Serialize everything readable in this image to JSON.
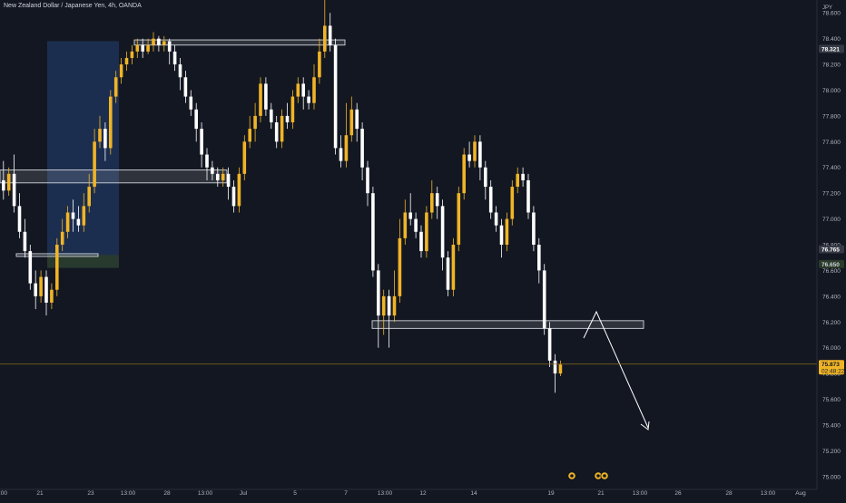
{
  "header": {
    "symbol_title": "New Zealand Dollar / Japanese Yen, 4h, OANDA"
  },
  "axis": {
    "currency": "JPY"
  },
  "chart_data": {
    "type": "candlestick",
    "title": "New Zealand Dollar / Japanese Yen, 4h, OANDA",
    "ylabel": "JPY",
    "ylim": [
      74.9,
      78.7
    ],
    "y_ticks": [
      "78.600",
      "78.400",
      "78.200",
      "78.000",
      "77.800",
      "77.600",
      "77.400",
      "77.200",
      "77.000",
      "76.800",
      "76.600",
      "76.400",
      "76.200",
      "76.000",
      "75.800",
      "75.600",
      "75.400",
      "75.200",
      "75.000"
    ],
    "x_ticks": [
      "21",
      "23",
      "13:00",
      "28",
      "13:00",
      "Jul",
      "5",
      "7",
      "13:00",
      "12",
      "14",
      "19",
      "21",
      "13:00",
      "26",
      "28",
      "13:00",
      "Aug"
    ],
    "x_ticks_partial": [
      ":00"
    ],
    "price_labels": [
      {
        "value": "78.321",
        "role": "high-marker"
      },
      {
        "value": "76.765",
        "role": "marker"
      },
      {
        "value": "76.650",
        "role": "marker"
      },
      {
        "value": "75.873",
        "role": "last-price"
      }
    ],
    "countdown": "02:48:22",
    "zones": [
      {
        "name": "upper-resistance-zone",
        "from": 78.35,
        "to": 78.39
      },
      {
        "name": "mid-resistance-zone",
        "from": 77.28,
        "to": 77.38
      },
      {
        "name": "lower-zone",
        "from": 76.71,
        "to": 76.73
      },
      {
        "name": "support-zone",
        "from": 76.15,
        "to": 76.21
      }
    ],
    "bullish_color": "#f0b427",
    "bearish_color": "#ffffff",
    "candles": [
      [
        77.3,
        77.22,
        77.45,
        77.15
      ],
      [
        77.22,
        77.35,
        77.4,
        77.18
      ],
      [
        77.35,
        77.1,
        77.5,
        77.05
      ],
      [
        77.1,
        76.9,
        77.2,
        76.85
      ],
      [
        76.9,
        76.75,
        77.0,
        76.7
      ],
      [
        76.75,
        76.5,
        76.8,
        76.45
      ],
      [
        76.5,
        76.4,
        76.6,
        76.3
      ],
      [
        76.4,
        76.55,
        76.6,
        76.35
      ],
      [
        76.55,
        76.35,
        76.6,
        76.25
      ],
      [
        76.35,
        76.45,
        76.5,
        76.3
      ],
      [
        76.45,
        76.8,
        76.85,
        76.4
      ],
      [
        76.8,
        76.9,
        77.0,
        76.75
      ],
      [
        76.9,
        77.05,
        77.1,
        76.85
      ],
      [
        77.05,
        77.0,
        77.15,
        76.9
      ],
      [
        77.0,
        76.95,
        77.1,
        76.9
      ],
      [
        76.95,
        77.1,
        77.2,
        76.9
      ],
      [
        77.1,
        77.25,
        77.35,
        77.05
      ],
      [
        77.25,
        77.6,
        77.7,
        77.2
      ],
      [
        77.6,
        77.7,
        77.8,
        77.55
      ],
      [
        77.7,
        77.55,
        77.75,
        77.45
      ],
      [
        77.55,
        77.95,
        78.0,
        77.5
      ],
      [
        77.95,
        78.1,
        78.15,
        77.9
      ],
      [
        78.1,
        78.2,
        78.25,
        78.05
      ],
      [
        78.2,
        78.25,
        78.3,
        78.15
      ],
      [
        78.25,
        78.3,
        78.35,
        78.2
      ],
      [
        78.3,
        78.35,
        78.4,
        78.25
      ],
      [
        78.35,
        78.3,
        78.4,
        78.25
      ],
      [
        78.3,
        78.35,
        78.4,
        78.28
      ],
      [
        78.35,
        78.4,
        78.45,
        78.3
      ],
      [
        78.4,
        78.35,
        78.42,
        78.3
      ],
      [
        78.35,
        78.38,
        78.42,
        78.3
      ],
      [
        78.38,
        78.3,
        78.4,
        78.2
      ],
      [
        78.3,
        78.2,
        78.35,
        78.15
      ],
      [
        78.2,
        78.1,
        78.25,
        78.0
      ],
      [
        78.1,
        77.95,
        78.15,
        77.9
      ],
      [
        77.95,
        77.85,
        78.0,
        77.8
      ],
      [
        77.85,
        77.7,
        77.9,
        77.6
      ],
      [
        77.7,
        77.5,
        77.75,
        77.4
      ],
      [
        77.5,
        77.4,
        77.55,
        77.3
      ],
      [
        77.4,
        77.35,
        77.45,
        77.3
      ],
      [
        77.35,
        77.3,
        77.4,
        77.25
      ],
      [
        77.3,
        77.35,
        77.4,
        77.25
      ],
      [
        77.35,
        77.25,
        77.4,
        77.15
      ],
      [
        77.25,
        77.1,
        77.3,
        77.05
      ],
      [
        77.1,
        77.35,
        77.4,
        77.05
      ],
      [
        77.35,
        77.6,
        77.65,
        77.3
      ],
      [
        77.6,
        77.7,
        77.8,
        77.55
      ],
      [
        77.7,
        77.8,
        77.9,
        77.6
      ],
      [
        77.8,
        78.05,
        78.1,
        77.75
      ],
      [
        78.05,
        77.85,
        78.1,
        77.8
      ],
      [
        77.85,
        77.75,
        77.9,
        77.7
      ],
      [
        77.75,
        77.6,
        77.8,
        77.55
      ],
      [
        77.6,
        77.8,
        77.85,
        77.55
      ],
      [
        77.8,
        77.75,
        77.9,
        77.7
      ],
      [
        77.75,
        77.95,
        78.0,
        77.7
      ],
      [
        77.95,
        78.05,
        78.1,
        77.9
      ],
      [
        78.05,
        77.95,
        78.1,
        77.85
      ],
      [
        77.95,
        77.9,
        78.0,
        77.85
      ],
      [
        77.9,
        78.1,
        78.2,
        77.85
      ],
      [
        78.1,
        78.3,
        78.4,
        78.05
      ],
      [
        78.3,
        78.5,
        78.7,
        78.25
      ],
      [
        78.5,
        78.35,
        78.6,
        78.3
      ],
      [
        78.35,
        77.55,
        78.4,
        77.5
      ],
      [
        77.55,
        77.45,
        77.65,
        77.4
      ],
      [
        77.45,
        77.65,
        77.9,
        77.4
      ],
      [
        77.65,
        77.85,
        77.95,
        77.6
      ],
      [
        77.85,
        77.7,
        77.9,
        77.6
      ],
      [
        77.7,
        77.4,
        77.75,
        77.3
      ],
      [
        77.4,
        77.2,
        77.45,
        77.1
      ],
      [
        77.2,
        76.6,
        77.25,
        76.55
      ],
      [
        76.6,
        76.25,
        76.65,
        76.0
      ],
      [
        76.25,
        76.4,
        76.45,
        76.1
      ],
      [
        76.4,
        76.25,
        76.45,
        76.0
      ],
      [
        76.25,
        76.4,
        76.6,
        76.2
      ],
      [
        76.4,
        76.85,
        77.0,
        76.35
      ],
      [
        76.85,
        77.05,
        77.15,
        76.8
      ],
      [
        77.05,
        77.0,
        77.2,
        76.95
      ],
      [
        77.0,
        76.9,
        77.05,
        76.85
      ],
      [
        76.9,
        76.75,
        76.95,
        76.7
      ],
      [
        76.75,
        77.05,
        77.1,
        76.7
      ],
      [
        77.05,
        77.2,
        77.3,
        77.0
      ],
      [
        77.2,
        77.1,
        77.25,
        77.0
      ],
      [
        77.1,
        76.7,
        77.15,
        76.6
      ],
      [
        76.7,
        76.45,
        76.75,
        76.4
      ],
      [
        76.45,
        76.8,
        76.85,
        76.4
      ],
      [
        76.8,
        77.2,
        77.25,
        76.75
      ],
      [
        77.2,
        77.5,
        77.55,
        77.15
      ],
      [
        77.5,
        77.45,
        77.6,
        77.4
      ],
      [
        77.45,
        77.6,
        77.65,
        77.4
      ],
      [
        77.6,
        77.4,
        77.65,
        77.3
      ],
      [
        77.4,
        77.25,
        77.45,
        77.15
      ],
      [
        77.25,
        77.05,
        77.3,
        77.0
      ],
      [
        77.05,
        76.95,
        77.1,
        76.9
      ],
      [
        76.95,
        76.8,
        77.0,
        76.7
      ],
      [
        76.8,
        77.0,
        77.05,
        76.75
      ],
      [
        77.0,
        77.25,
        77.3,
        76.95
      ],
      [
        77.25,
        77.35,
        77.4,
        77.2
      ],
      [
        77.35,
        77.3,
        77.4,
        77.25
      ],
      [
        77.3,
        77.05,
        77.35,
        77.0
      ],
      [
        77.05,
        76.8,
        77.1,
        76.75
      ],
      [
        76.8,
        76.6,
        76.85,
        76.5
      ],
      [
        76.6,
        76.15,
        76.65,
        76.1
      ],
      [
        76.15,
        75.9,
        76.2,
        75.85
      ],
      [
        75.9,
        75.8,
        75.95,
        75.65
      ],
      [
        75.8,
        75.87,
        75.9,
        75.78
      ]
    ]
  }
}
